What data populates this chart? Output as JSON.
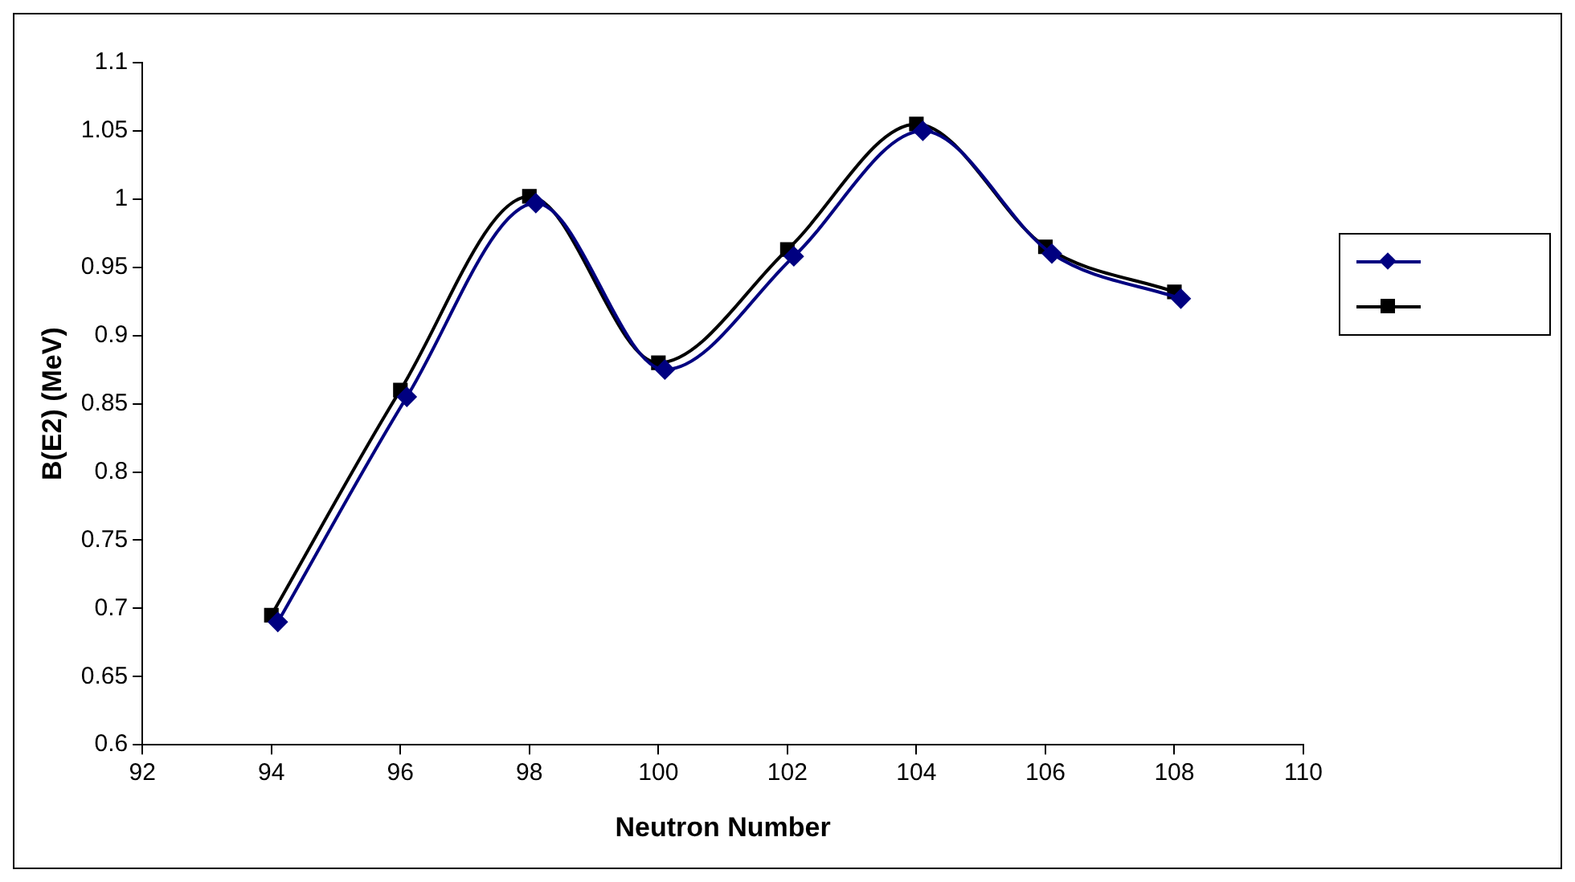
{
  "chart_data": {
    "type": "line",
    "xlabel": "Neutron Number",
    "ylabel": "B(E2) (MeV)",
    "xlim": [
      92,
      110
    ],
    "xticks": [
      92,
      94,
      96,
      98,
      100,
      102,
      104,
      106,
      108,
      110
    ],
    "ylim": [
      0.6,
      1.1
    ],
    "yticks": [
      0.6,
      0.65,
      0.7,
      0.75,
      0.8,
      0.85,
      0.9,
      0.95,
      1,
      1.05,
      1.1
    ],
    "grid": false,
    "series": [
      {
        "color": "#000080",
        "marker": "diamond",
        "x": [
          94.1,
          96.1,
          98.1,
          100.1,
          102.1,
          104.1,
          106.1,
          108.1
        ],
        "values": [
          0.69,
          0.855,
          0.997,
          0.875,
          0.958,
          1.05,
          0.96,
          0.927
        ]
      },
      {
        "color": "#000000",
        "marker": "square",
        "x": [
          94,
          96,
          98,
          100,
          102,
          104,
          106,
          108
        ],
        "values": [
          0.695,
          0.86,
          1.002,
          0.88,
          0.963,
          1.055,
          0.965,
          0.932
        ]
      }
    ]
  }
}
